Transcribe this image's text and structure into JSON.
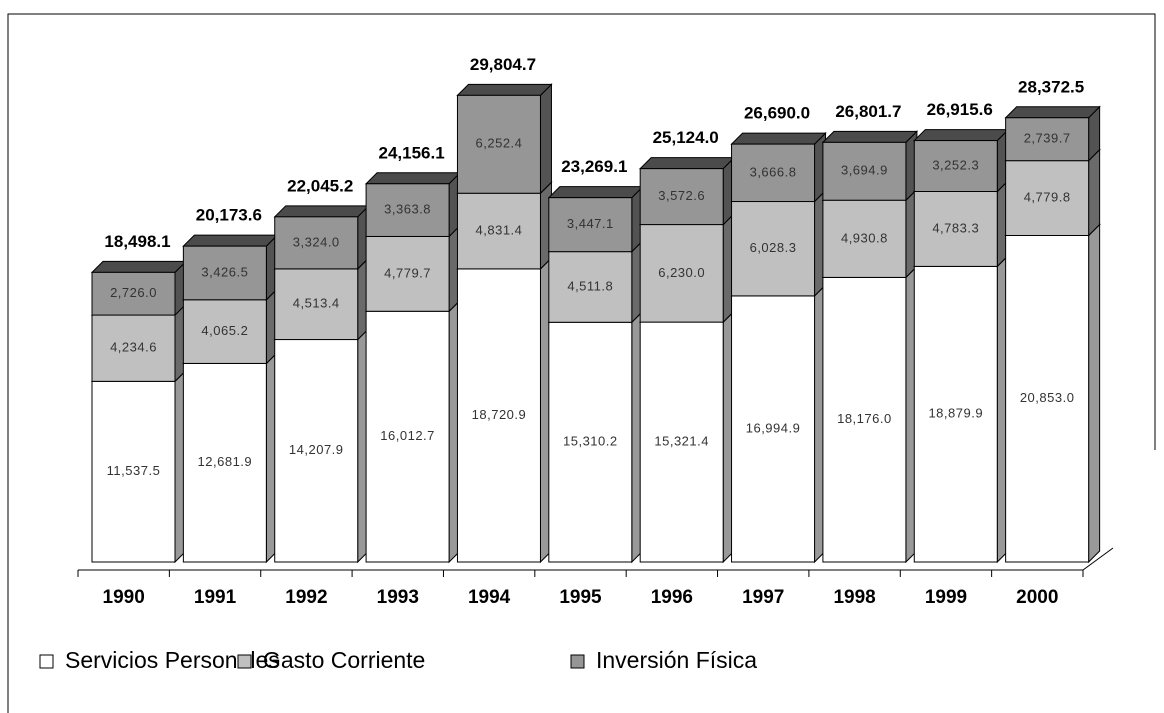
{
  "chart_data": {
    "type": "stacked_bar_3d",
    "categories": [
      "1990",
      "1991",
      "1992",
      "1993",
      "1994",
      "1995",
      "1996",
      "1997",
      "1998",
      "1999",
      "2000"
    ],
    "series": [
      {
        "name": "Servicios Personales",
        "color": "#ffffff",
        "values": [
          11537.5,
          12681.9,
          14207.9,
          16012.7,
          18720.9,
          15310.2,
          15321.4,
          16994.9,
          18176.0,
          18879.9,
          20853.0
        ],
        "value_labels": [
          "11,537.5",
          "12,681.9",
          "14,207.9",
          "16,012.7",
          "18,720.9",
          "15,310.2",
          "15,321.4",
          "16,994.9",
          "18,176.0",
          "18,879.9",
          "20,853.0"
        ]
      },
      {
        "name": "Gasto Corriente",
        "color": "#c0c0c0",
        "values": [
          4234.6,
          4065.2,
          4513.4,
          4779.7,
          4831.4,
          4511.8,
          6230.0,
          6028.3,
          4930.8,
          4783.3,
          4779.8
        ],
        "value_labels": [
          "4,234.6",
          "4,065.2",
          "4,513.4",
          "4,779.7",
          "4,831.4",
          "4,511.8",
          "6,230.0",
          "6,028.3",
          "4,930.8",
          "4,783.3",
          "4,779.8"
        ]
      },
      {
        "name": "Inversión Física",
        "color": "#969696",
        "values": [
          2726.0,
          3426.5,
          3324.0,
          3363.8,
          6252.4,
          3447.1,
          3572.6,
          3666.8,
          3694.9,
          3252.3,
          2739.7
        ],
        "value_labels": [
          "2,726.0",
          "3,426.5",
          "3,324.0",
          "3,363.8",
          "6,252.4",
          "3,447.1",
          "3,572.6",
          "3,666.8",
          "3,694.9",
          "3,252.3",
          "2,739.7"
        ]
      }
    ],
    "totals": [
      18498.1,
      20173.6,
      22045.2,
      24156.1,
      29804.7,
      23269.1,
      25124.0,
      26690.0,
      26801.7,
      26915.6,
      28372.5
    ],
    "total_labels": [
      "18,498.1",
      "20,173.6",
      "22,045.2",
      "24,156.1",
      "29,804.7",
      "23,269.1",
      "25,124.0",
      "26,690.0",
      "26,801.7",
      "26,915.6",
      "28,372.5"
    ],
    "ylim": [
      0,
      35000
    ]
  }
}
